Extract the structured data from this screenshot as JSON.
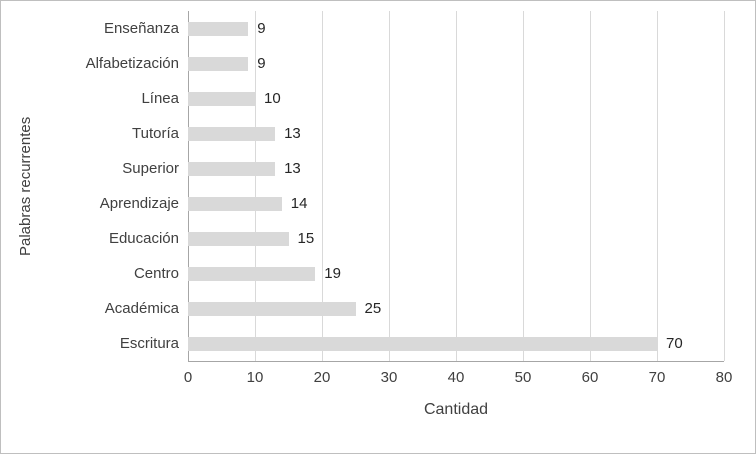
{
  "chart_data": {
    "type": "bar",
    "orientation": "horizontal",
    "title": "",
    "xlabel": "Cantidad",
    "ylabel": "Palabras recurrentes",
    "categories": [
      "Enseñanza",
      "Alfabetización",
      "Línea",
      "Tutoría",
      "Superior",
      "Aprendizaje",
      "Educación",
      "Centro",
      "Académica",
      "Escritura"
    ],
    "values": [
      9,
      9,
      10,
      13,
      13,
      14,
      15,
      19,
      25,
      70
    ],
    "xlim": [
      0,
      80
    ],
    "x_ticks": [
      0,
      10,
      20,
      30,
      40,
      50,
      60,
      70,
      80
    ],
    "grid": "vertical",
    "legend": "none",
    "data_labels": true,
    "colors": {
      "bar_fill": "#d9d9d9",
      "gridline": "#d9d9d9",
      "axis_line": "#a6a6a6",
      "text": "#404040",
      "frame_border": "#bfbfbf"
    }
  }
}
